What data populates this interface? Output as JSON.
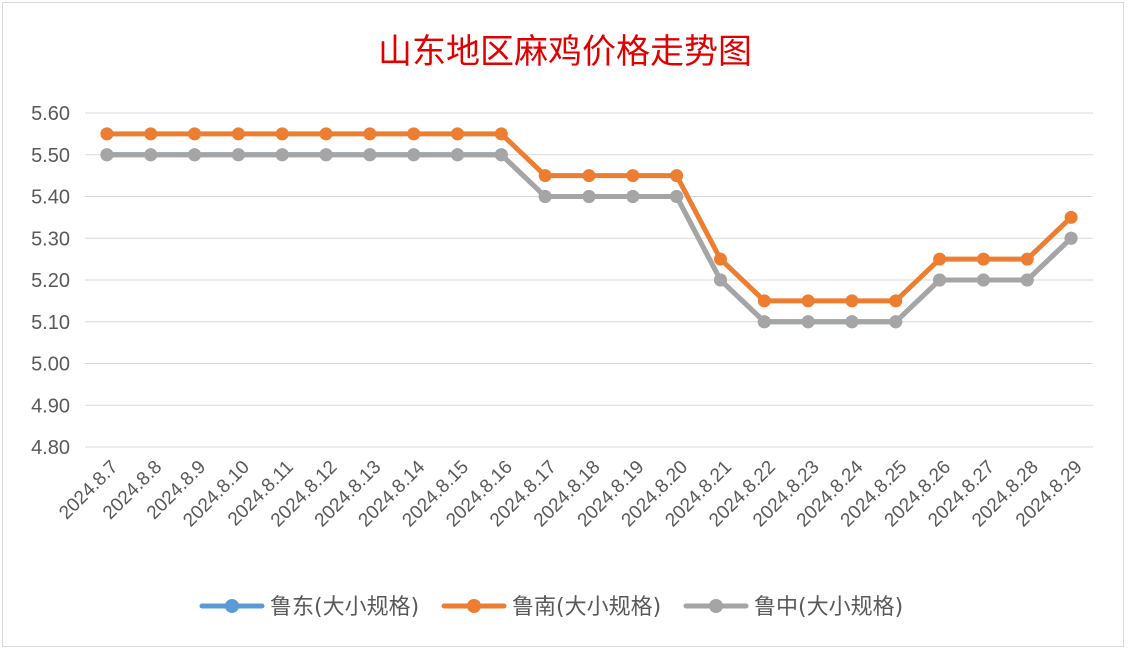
{
  "chart_data": {
    "type": "line",
    "title": "山东地区麻鸡价格走势图",
    "x": [
      "2024.8.7",
      "2024.8.8",
      "2024.8.9",
      "2024.8.10",
      "2024.8.11",
      "2024.8.12",
      "2024.8.13",
      "2024.8.14",
      "2024.8.15",
      "2024.8.16",
      "2024.8.17",
      "2024.8.18",
      "2024.8.19",
      "2024.8.20",
      "2024.8.21",
      "2024.8.22",
      "2024.8.23",
      "2024.8.24",
      "2024.8.25",
      "2024.8.26",
      "2024.8.27",
      "2024.8.28",
      "2024.8.29"
    ],
    "ylim": [
      4.8,
      5.6
    ],
    "yticks": [
      "5.60",
      "5.50",
      "5.40",
      "5.30",
      "5.20",
      "5.10",
      "5.00",
      "4.90",
      "4.80"
    ],
    "grid": true,
    "legend": "bottom",
    "series": [
      {
        "name": "鲁东(大小规格)",
        "color": "#5b9bd5",
        "values": [
          5.5,
          5.5,
          5.5,
          5.5,
          5.5,
          5.5,
          5.5,
          5.5,
          5.5,
          5.5,
          5.4,
          5.4,
          5.4,
          5.4,
          5.2,
          5.1,
          5.1,
          5.1,
          5.1,
          5.2,
          5.2,
          5.2,
          5.3
        ]
      },
      {
        "name": "鲁南(大小规格)",
        "color": "#ed7d31",
        "values": [
          5.55,
          5.55,
          5.55,
          5.55,
          5.55,
          5.55,
          5.55,
          5.55,
          5.55,
          5.55,
          5.45,
          5.45,
          5.45,
          5.45,
          5.25,
          5.15,
          5.15,
          5.15,
          5.15,
          5.25,
          5.25,
          5.25,
          5.35
        ]
      },
      {
        "name": "鲁中(大小规格)",
        "color": "#a5a5a5",
        "values": [
          5.5,
          5.5,
          5.5,
          5.5,
          5.5,
          5.5,
          5.5,
          5.5,
          5.5,
          5.5,
          5.4,
          5.4,
          5.4,
          5.4,
          5.2,
          5.1,
          5.1,
          5.1,
          5.1,
          5.2,
          5.2,
          5.2,
          5.3
        ]
      }
    ]
  }
}
